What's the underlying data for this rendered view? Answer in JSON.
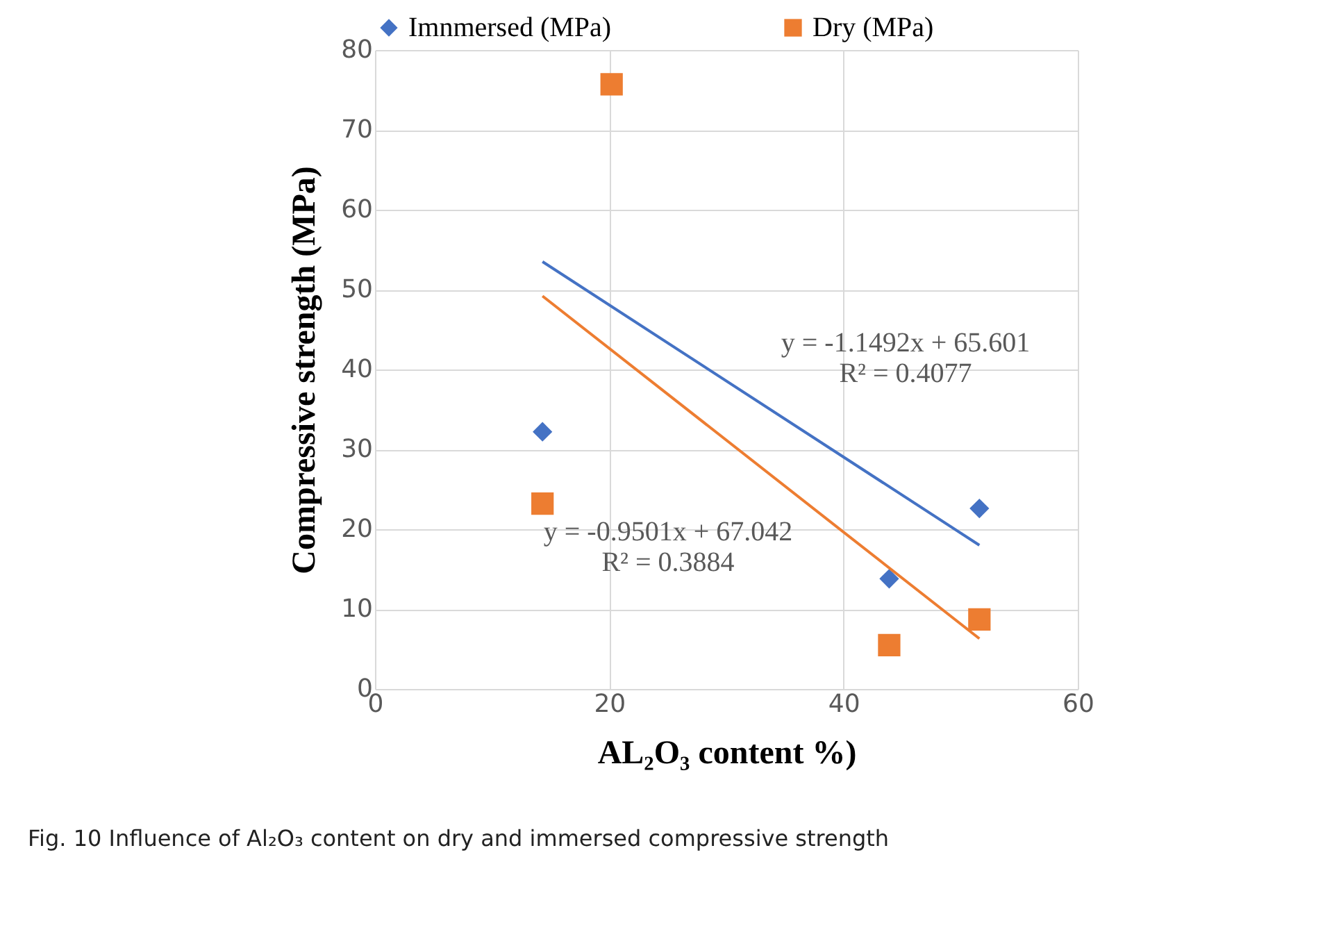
{
  "chart_data": {
    "type": "scatter",
    "xlabel": "AL₂O₃ content %)",
    "ylabel": "Compressive strength (MPa)",
    "xlim": [
      0,
      60
    ],
    "xticks": [
      0,
      20,
      40,
      60
    ],
    "ylim": [
      0,
      80
    ],
    "yticks": [
      0,
      10,
      20,
      30,
      40,
      50,
      60,
      70,
      80
    ],
    "grid": true,
    "legend": "top",
    "series": [
      {
        "name": "Imnmersed (MPa)",
        "color": "#4472c4",
        "marker": "diamond",
        "x": [
          14.3,
          20.2,
          43.9,
          51.6
        ],
        "values": [
          32.2,
          null,
          13.8,
          22.6
        ]
      },
      {
        "name": "Dry (MPa)",
        "color": "#ed7d31",
        "marker": "square",
        "x": [
          14.3,
          20.2,
          43.9,
          51.6
        ],
        "values": [
          23.2,
          75.7,
          5.5,
          8.7
        ]
      },
      {
        "type": "line",
        "color": "#4472c4",
        "marker": "none",
        "x": [
          14.3,
          51.6
        ],
        "values": [
          53.5,
          18.0
        ]
      },
      {
        "type": "line",
        "color": "#ed7d31",
        "marker": "none",
        "x": [
          14.3,
          51.6
        ],
        "values": [
          49.2,
          6.3
        ]
      }
    ],
    "annotations": [
      "y = -1.1492x + 65.601\nR² = 0.4077",
      "y = -0.9501x + 67.042\nR² = 0.3884",
      "Fig. 10  Influence of Al₂O₃ content on dry and immersed compressive strength"
    ]
  }
}
